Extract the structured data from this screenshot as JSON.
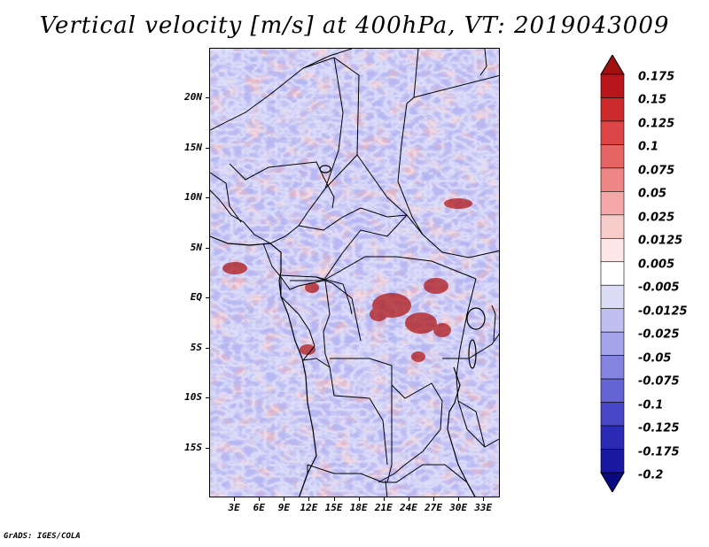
{
  "title": "Vertical velocity [m/s] at 400hPa, VT: 2019043009",
  "credit": "GrADS: IGES/COLA",
  "map": {
    "lat_labels": [
      "20N",
      "15N",
      "10N",
      "5N",
      "EQ",
      "5S",
      "10S",
      "15S"
    ],
    "lat_values": [
      20,
      15,
      10,
      5,
      0,
      -5,
      -10,
      -15
    ],
    "lon_labels": [
      "3E",
      "6E",
      "9E",
      "12E",
      "15E",
      "18E",
      "21E",
      "24E",
      "27E",
      "30E",
      "33E"
    ],
    "lon_values": [
      3,
      6,
      9,
      12,
      15,
      18,
      21,
      24,
      27,
      30,
      33
    ],
    "lat_range": [
      -20,
      25
    ],
    "lon_range": [
      0,
      35
    ]
  },
  "colorbar": {
    "levels": [
      "0.175",
      "0.15",
      "0.125",
      "0.1",
      "0.075",
      "0.05",
      "0.025",
      "0.0125",
      "0.005",
      "-0.005",
      "-0.0125",
      "-0.025",
      "-0.05",
      "-0.075",
      "-0.1",
      "-0.125",
      "-0.175",
      "-0.2"
    ],
    "colors": [
      "#a01010",
      "#b8161a",
      "#cc2a2a",
      "#dc4646",
      "#e56464",
      "#ee8686",
      "#f4a8a8",
      "#f9cccc",
      "#fde6e6",
      "#ffffff",
      "#dcdcf6",
      "#c0c0f0",
      "#a4a4ea",
      "#8484e0",
      "#6464d4",
      "#4646c6",
      "#2a2ab4",
      "#1818a0",
      "#0a0a80"
    ]
  }
}
